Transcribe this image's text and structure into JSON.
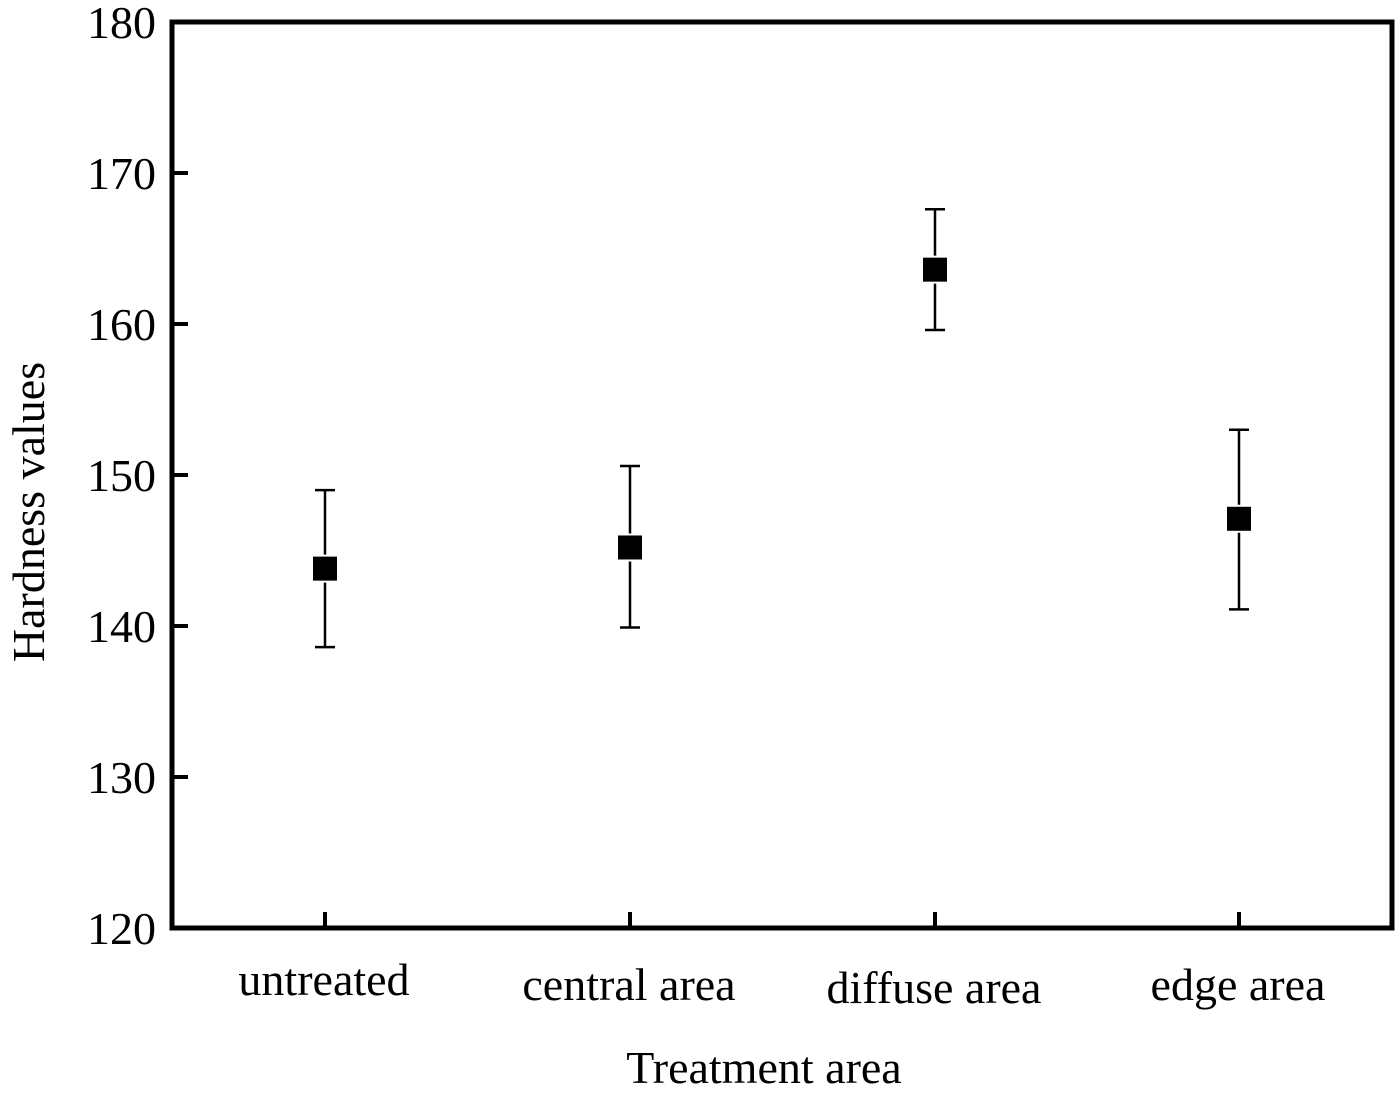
{
  "chart_data": {
    "type": "scatter",
    "title": "",
    "xlabel": "Treatment area",
    "ylabel": "Hardness values",
    "categories": [
      "untreated",
      "central area",
      "diffuse area",
      "edge area"
    ],
    "series": [
      {
        "name": "Hardness",
        "marker": "filled-square",
        "color": "#000000",
        "values": [
          143.8,
          145.2,
          163.6,
          147.1
        ],
        "error_upper": [
          149.0,
          150.6,
          167.6,
          153.0
        ],
        "error_lower": [
          138.6,
          139.9,
          159.6,
          141.1
        ]
      }
    ],
    "ylim": [
      120,
      180
    ],
    "yticks": [
      120,
      130,
      140,
      150,
      160,
      170,
      180
    ],
    "grid": false,
    "legend": "none"
  }
}
